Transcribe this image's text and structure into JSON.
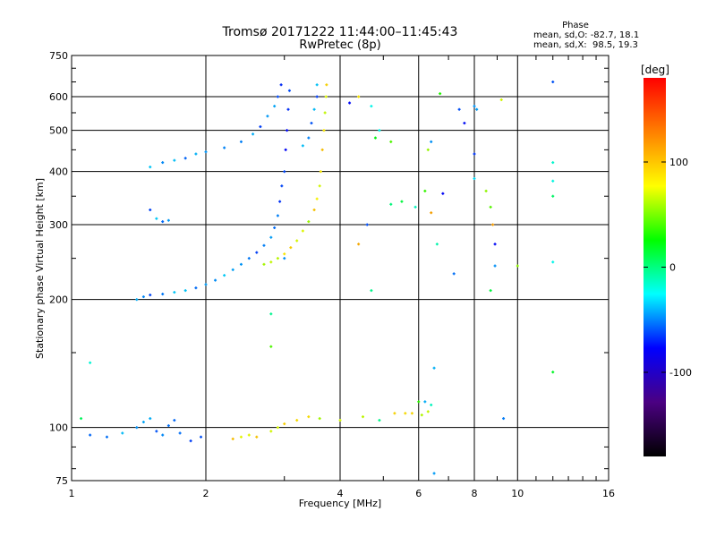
{
  "chart_data": {
    "type": "scatter",
    "title": "Tromsø 20171222 11:44:00–11:45:43",
    "subtitle": "RwPretec (8p)",
    "xlabel": "Frequency [MHz]",
    "ylabel": "Stationary phase Virtual Height [km]",
    "x_scale": "log",
    "y_scale": "log",
    "xlim": [
      1,
      16
    ],
    "ylim": [
      75,
      750
    ],
    "x_ticks": [
      1,
      2,
      4,
      6,
      8,
      10,
      16
    ],
    "y_ticks": [
      75,
      100,
      200,
      300,
      400,
      500,
      600,
      750
    ],
    "phase_box": {
      "title": "Phase",
      "line_o": "mean, sd,O: -82.7, 18.1",
      "line_x": "mean, sd,X:  98.5, 19.3"
    },
    "colorbar": {
      "label": "[deg]",
      "min": -180,
      "max": 180,
      "ticks": [
        -100,
        0,
        100
      ],
      "palette": [
        "#000000",
        "#4b0082",
        "#0000ff",
        "#00ffff",
        "#00ff00",
        "#ffff00",
        "#ff8000",
        "#ff0000"
      ]
    },
    "series": [
      {
        "mode": "O",
        "color_hint": "blue (phase about -100 deg)",
        "points": [
          [
            1.4,
            200
          ],
          [
            1.45,
            203
          ],
          [
            1.5,
            205
          ],
          [
            1.6,
            206
          ],
          [
            1.7,
            208
          ],
          [
            1.8,
            210
          ],
          [
            1.9,
            213
          ],
          [
            2.0,
            217
          ],
          [
            2.1,
            222
          ],
          [
            2.2,
            228
          ],
          [
            2.3,
            235
          ],
          [
            2.4,
            242
          ],
          [
            2.5,
            250
          ],
          [
            2.6,
            258
          ],
          [
            2.7,
            268
          ],
          [
            2.8,
            280
          ],
          [
            2.85,
            295
          ],
          [
            2.9,
            315
          ],
          [
            2.93,
            340
          ],
          [
            2.96,
            370
          ],
          [
            3.0,
            400
          ],
          [
            3.02,
            450
          ],
          [
            3.04,
            500
          ],
          [
            3.06,
            560
          ],
          [
            3.08,
            620
          ],
          [
            1.5,
            410
          ],
          [
            1.6,
            420
          ],
          [
            1.7,
            425
          ],
          [
            1.8,
            430
          ],
          [
            1.9,
            440
          ],
          [
            2.0,
            445
          ],
          [
            2.2,
            455
          ],
          [
            2.4,
            470
          ],
          [
            2.55,
            490
          ],
          [
            2.65,
            510
          ],
          [
            2.75,
            540
          ],
          [
            2.85,
            570
          ],
          [
            2.9,
            600
          ],
          [
            2.95,
            640
          ],
          [
            3.3,
            460
          ],
          [
            3.4,
            480
          ],
          [
            3.45,
            520
          ],
          [
            3.5,
            560
          ],
          [
            3.55,
            600
          ],
          [
            3.55,
            640
          ],
          [
            1.55,
            310
          ],
          [
            1.6,
            305
          ],
          [
            1.65,
            307
          ],
          [
            1.1,
            96
          ],
          [
            1.2,
            95
          ],
          [
            1.3,
            97
          ],
          [
            1.4,
            100
          ],
          [
            1.45,
            103
          ],
          [
            1.5,
            105
          ],
          [
            1.55,
            98
          ],
          [
            1.6,
            96
          ],
          [
            1.65,
            101
          ],
          [
            1.7,
            104
          ],
          [
            1.75,
            97
          ],
          [
            1.85,
            93
          ],
          [
            1.95,
            95
          ]
        ]
      },
      {
        "mode": "X",
        "color_hint": "yellow/orange (phase about +100 deg)",
        "points": [
          [
            2.7,
            242
          ],
          [
            2.8,
            245
          ],
          [
            2.9,
            250
          ],
          [
            3.0,
            256
          ],
          [
            3.1,
            265
          ],
          [
            3.2,
            275
          ],
          [
            3.3,
            290
          ],
          [
            3.4,
            305
          ],
          [
            3.5,
            325
          ],
          [
            3.55,
            345
          ],
          [
            3.6,
            370
          ],
          [
            3.62,
            400
          ],
          [
            3.65,
            450
          ],
          [
            3.68,
            500
          ],
          [
            3.7,
            550
          ],
          [
            3.72,
            600
          ],
          [
            3.73,
            640
          ],
          [
            2.3,
            94
          ],
          [
            2.4,
            95
          ],
          [
            2.5,
            96
          ],
          [
            2.6,
            95
          ],
          [
            2.8,
            98
          ],
          [
            2.9,
            100
          ],
          [
            3.0,
            102
          ],
          [
            3.2,
            104
          ],
          [
            3.4,
            106
          ],
          [
            3.6,
            105
          ],
          [
            4.0,
            104
          ],
          [
            4.5,
            106
          ],
          [
            5.3,
            108
          ],
          [
            5.6,
            108
          ],
          [
            5.8,
            108
          ],
          [
            6.1,
            107
          ],
          [
            6.3,
            109
          ]
        ]
      },
      {
        "mode": "scattered",
        "color_hint": "mixed",
        "points": [
          [
            1.05,
            105
          ],
          [
            1.1,
            142
          ],
          [
            1.5,
            325
          ],
          [
            2.8,
            185
          ],
          [
            2.8,
            155
          ],
          [
            4.2,
            580
          ],
          [
            4.4,
            600
          ],
          [
            4.7,
            570
          ],
          [
            4.9,
            500
          ],
          [
            4.8,
            480
          ],
          [
            5.2,
            470
          ],
          [
            4.6,
            300
          ],
          [
            4.4,
            270
          ],
          [
            4.7,
            210
          ],
          [
            5.2,
            335
          ],
          [
            5.5,
            340
          ],
          [
            5.9,
            330
          ],
          [
            6.2,
            360
          ],
          [
            6.4,
            320
          ],
          [
            6.8,
            355
          ],
          [
            7.2,
            230
          ],
          [
            7.4,
            560
          ],
          [
            7.6,
            520
          ],
          [
            8.0,
            570
          ],
          [
            8.1,
            560
          ],
          [
            8.0,
            440
          ],
          [
            8.0,
            385
          ],
          [
            8.5,
            360
          ],
          [
            8.7,
            330
          ],
          [
            8.8,
            300
          ],
          [
            8.9,
            270
          ],
          [
            8.9,
            240
          ],
          [
            8.7,
            210
          ],
          [
            9.2,
            590
          ],
          [
            10.0,
            240
          ],
          [
            12.0,
            650
          ],
          [
            12.0,
            420
          ],
          [
            12.0,
            380
          ],
          [
            12.0,
            350
          ],
          [
            12.0,
            245
          ],
          [
            12.0,
            135
          ],
          [
            6.5,
            138
          ],
          [
            6.2,
            115
          ],
          [
            6.4,
            113
          ],
          [
            6.0,
            115
          ],
          [
            6.7,
            610
          ],
          [
            6.3,
            450
          ],
          [
            6.4,
            470
          ],
          [
            6.6,
            270
          ],
          [
            6.5,
            78
          ],
          [
            9.3,
            105
          ],
          [
            4.9,
            104
          ],
          [
            3.0,
            250
          ]
        ]
      }
    ]
  }
}
